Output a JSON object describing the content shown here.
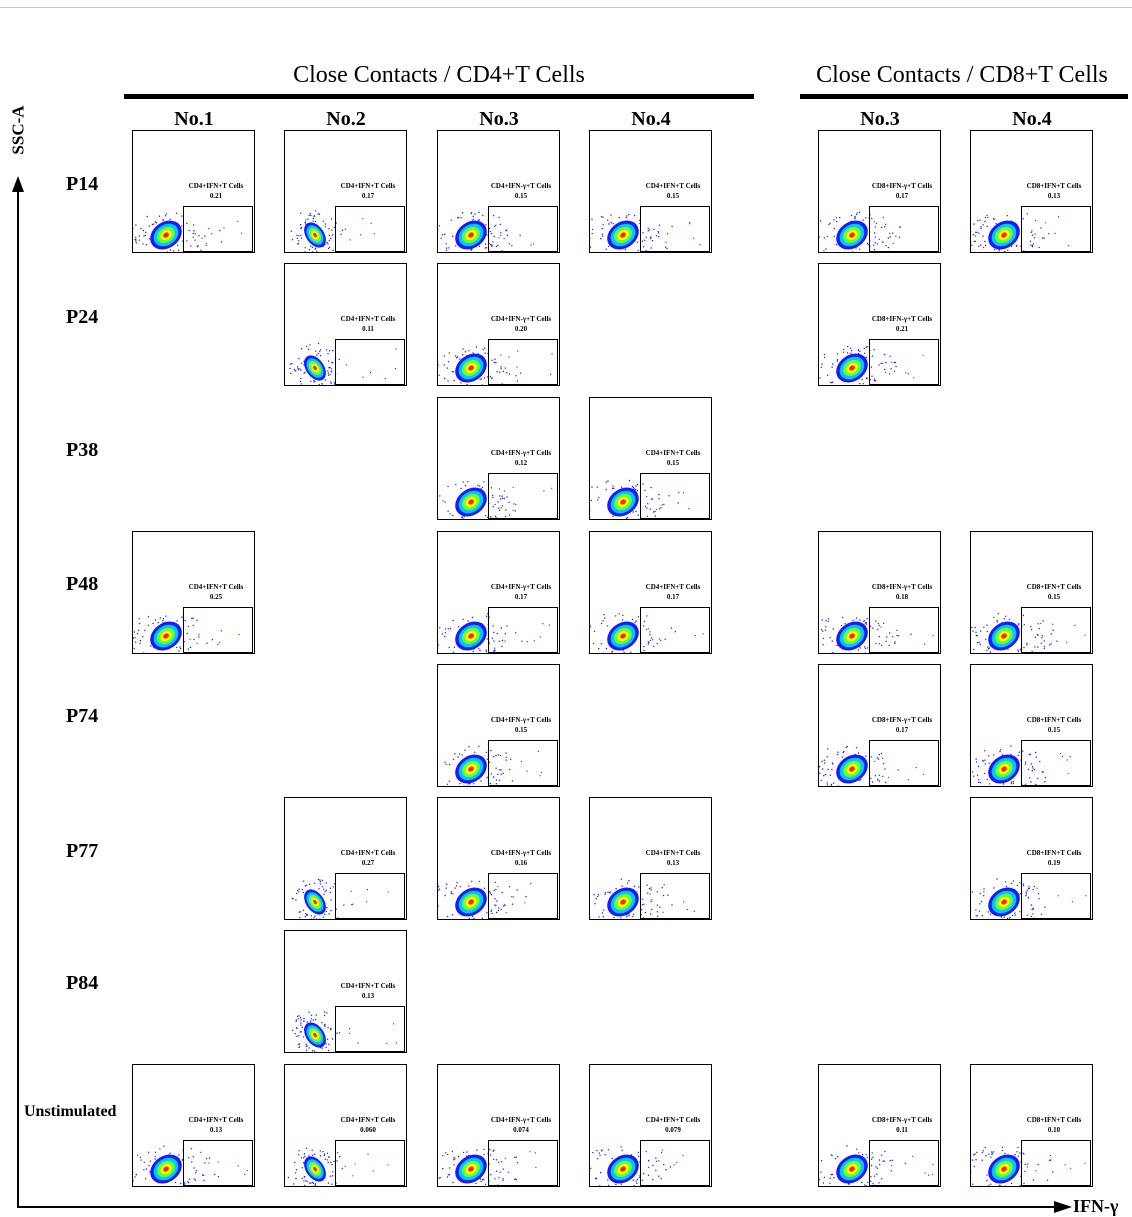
{
  "headers": {
    "cd4": "Close Contacts / CD4+T Cells",
    "cd8": "Close Contacts / CD8+T Cells"
  },
  "columns": [
    {
      "label": "No.1",
      "group": "cd4"
    },
    {
      "label": "No.2",
      "group": "cd4"
    },
    {
      "label": "No.3",
      "group": "cd4"
    },
    {
      "label": "No.4",
      "group": "cd4"
    },
    {
      "label": "No.3",
      "group": "cd8"
    },
    {
      "label": "No.4",
      "group": "cd8"
    }
  ],
  "rows": [
    "P14",
    "P24",
    "P38",
    "P48",
    "P74",
    "P77",
    "P84",
    "Unstimulated"
  ],
  "axes": {
    "y": "SSC-A",
    "x": "IFN-γ"
  },
  "gate_labels": {
    "cd4_ifn": "CD4+IFN+T Cells",
    "cd4_ifng": "CD4+IFN-γ+T Cells",
    "cd8_ifng": "CD8+IFN-γ+T Cells",
    "cd8_ifn": "CD8+IFN+T Cells"
  },
  "colors": {
    "density": [
      "#1a1aff",
      "#00c8ff",
      "#66ff33",
      "#ffff00",
      "#ff2200"
    ]
  },
  "chart_data": {
    "type": "flow-cytometry-grid",
    "panels": [
      {
        "row": "P14",
        "col": 0,
        "gate": "CD4+IFN+T Cells",
        "value": "0.21"
      },
      {
        "row": "P14",
        "col": 1,
        "gate": "CD4+IFN+T Cells",
        "value": "0.17"
      },
      {
        "row": "P14",
        "col": 2,
        "gate": "CD4+IFN-γ+T Cells",
        "value": "0.15"
      },
      {
        "row": "P14",
        "col": 3,
        "gate": "CD4+IFN+T Cells",
        "value": "0.15"
      },
      {
        "row": "P14",
        "col": 4,
        "gate": "CD8+IFN-γ+T Cells",
        "value": "0.17"
      },
      {
        "row": "P14",
        "col": 5,
        "gate": "CD8+IFN+T Cells",
        "value": "0.13"
      },
      {
        "row": "P24",
        "col": 1,
        "gate": "CD4+IFN+T Cells",
        "value": "0.11"
      },
      {
        "row": "P24",
        "col": 2,
        "gate": "CD4+IFN-γ+T Cells",
        "value": "0.20"
      },
      {
        "row": "P24",
        "col": 4,
        "gate": "CD8+IFN-γ+T Cells",
        "value": "0.21"
      },
      {
        "row": "P38",
        "col": 2,
        "gate": "CD4+IFN-γ+T Cells",
        "value": "0.12"
      },
      {
        "row": "P38",
        "col": 3,
        "gate": "CD4+IFN+T Cells",
        "value": "0.15"
      },
      {
        "row": "P48",
        "col": 0,
        "gate": "CD4+IFN+T Cells",
        "value": "0.25"
      },
      {
        "row": "P48",
        "col": 2,
        "gate": "CD4+IFN-γ+T Cells",
        "value": "0.17"
      },
      {
        "row": "P48",
        "col": 3,
        "gate": "CD4+IFN+T Cells",
        "value": "0.17"
      },
      {
        "row": "P48",
        "col": 4,
        "gate": "CD8+IFN-γ+T Cells",
        "value": "0.18"
      },
      {
        "row": "P48",
        "col": 5,
        "gate": "CD8+IFN+T Cells",
        "value": "0.15"
      },
      {
        "row": "P74",
        "col": 2,
        "gate": "CD4+IFN-γ+T Cells",
        "value": "0.15"
      },
      {
        "row": "P74",
        "col": 4,
        "gate": "CD8+IFN-γ+T Cells",
        "value": "0.17"
      },
      {
        "row": "P74",
        "col": 5,
        "gate": "CD8+IFN+T Cells",
        "value": "0.15"
      },
      {
        "row": "P77",
        "col": 1,
        "gate": "CD4+IFN+T Cells",
        "value": "0.27"
      },
      {
        "row": "P77",
        "col": 2,
        "gate": "CD4+IFN-γ+T Cells",
        "value": "0.16"
      },
      {
        "row": "P77",
        "col": 3,
        "gate": "CD4+IFN+T Cells",
        "value": "0.13"
      },
      {
        "row": "P77",
        "col": 5,
        "gate": "CD8+IFN+T Cells",
        "value": "0.19"
      },
      {
        "row": "P84",
        "col": 1,
        "gate": "CD4+IFN+T Cells",
        "value": "0.13"
      },
      {
        "row": "Unstimulated",
        "col": 0,
        "gate": "CD4+IFN+T Cells",
        "value": "0.13"
      },
      {
        "row": "Unstimulated",
        "col": 1,
        "gate": "CD4+IFN+T Cells",
        "value": "0.060"
      },
      {
        "row": "Unstimulated",
        "col": 2,
        "gate": "CD4+IFN-γ+T Cells",
        "value": "0.074"
      },
      {
        "row": "Unstimulated",
        "col": 3,
        "gate": "CD4+IFN+T Cells",
        "value": "0.079"
      },
      {
        "row": "Unstimulated",
        "col": 4,
        "gate": "CD8+IFN-γ+T Cells",
        "value": "0.11"
      },
      {
        "row": "Unstimulated",
        "col": 5,
        "gate": "CD8+IFN+T Cells",
        "value": "0.10"
      }
    ]
  }
}
